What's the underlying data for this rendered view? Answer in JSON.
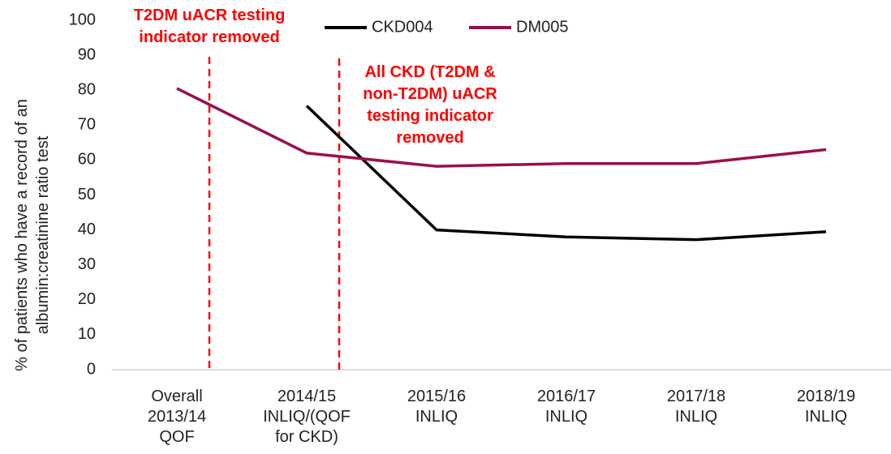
{
  "chart_data": {
    "type": "line",
    "ylabel": "% of patients who have a record of an\nalbumin:creatinine ratio test",
    "categories": [
      "Overall\n2013/14\nQOF",
      "2014/15\nINLIQ/(QOF\nfor CKD)",
      "2015/16\nINLIQ",
      "2016/17\nINLIQ",
      "2017/18\nINLIQ",
      "2018/19\nINLIQ"
    ],
    "series": [
      {
        "name": "CKD004",
        "color": "#000000",
        "values": [
          null,
          75.5,
          40,
          38,
          37.2,
          39.5
        ]
      },
      {
        "name": "DM005",
        "color": "#990f4d",
        "values": [
          80.5,
          62,
          58.2,
          59,
          59,
          63
        ]
      }
    ],
    "ylim": [
      0,
      100
    ],
    "yticks": [
      0,
      10,
      20,
      30,
      40,
      50,
      60,
      70,
      80,
      90,
      100
    ],
    "annotations": [
      "T2DM uACR testing\nindicator removed",
      "All CKD (T2DM &\nnon-T2DM) uACR\ntesting indicator\nremoved"
    ],
    "legend": "top",
    "grid": false
  }
}
